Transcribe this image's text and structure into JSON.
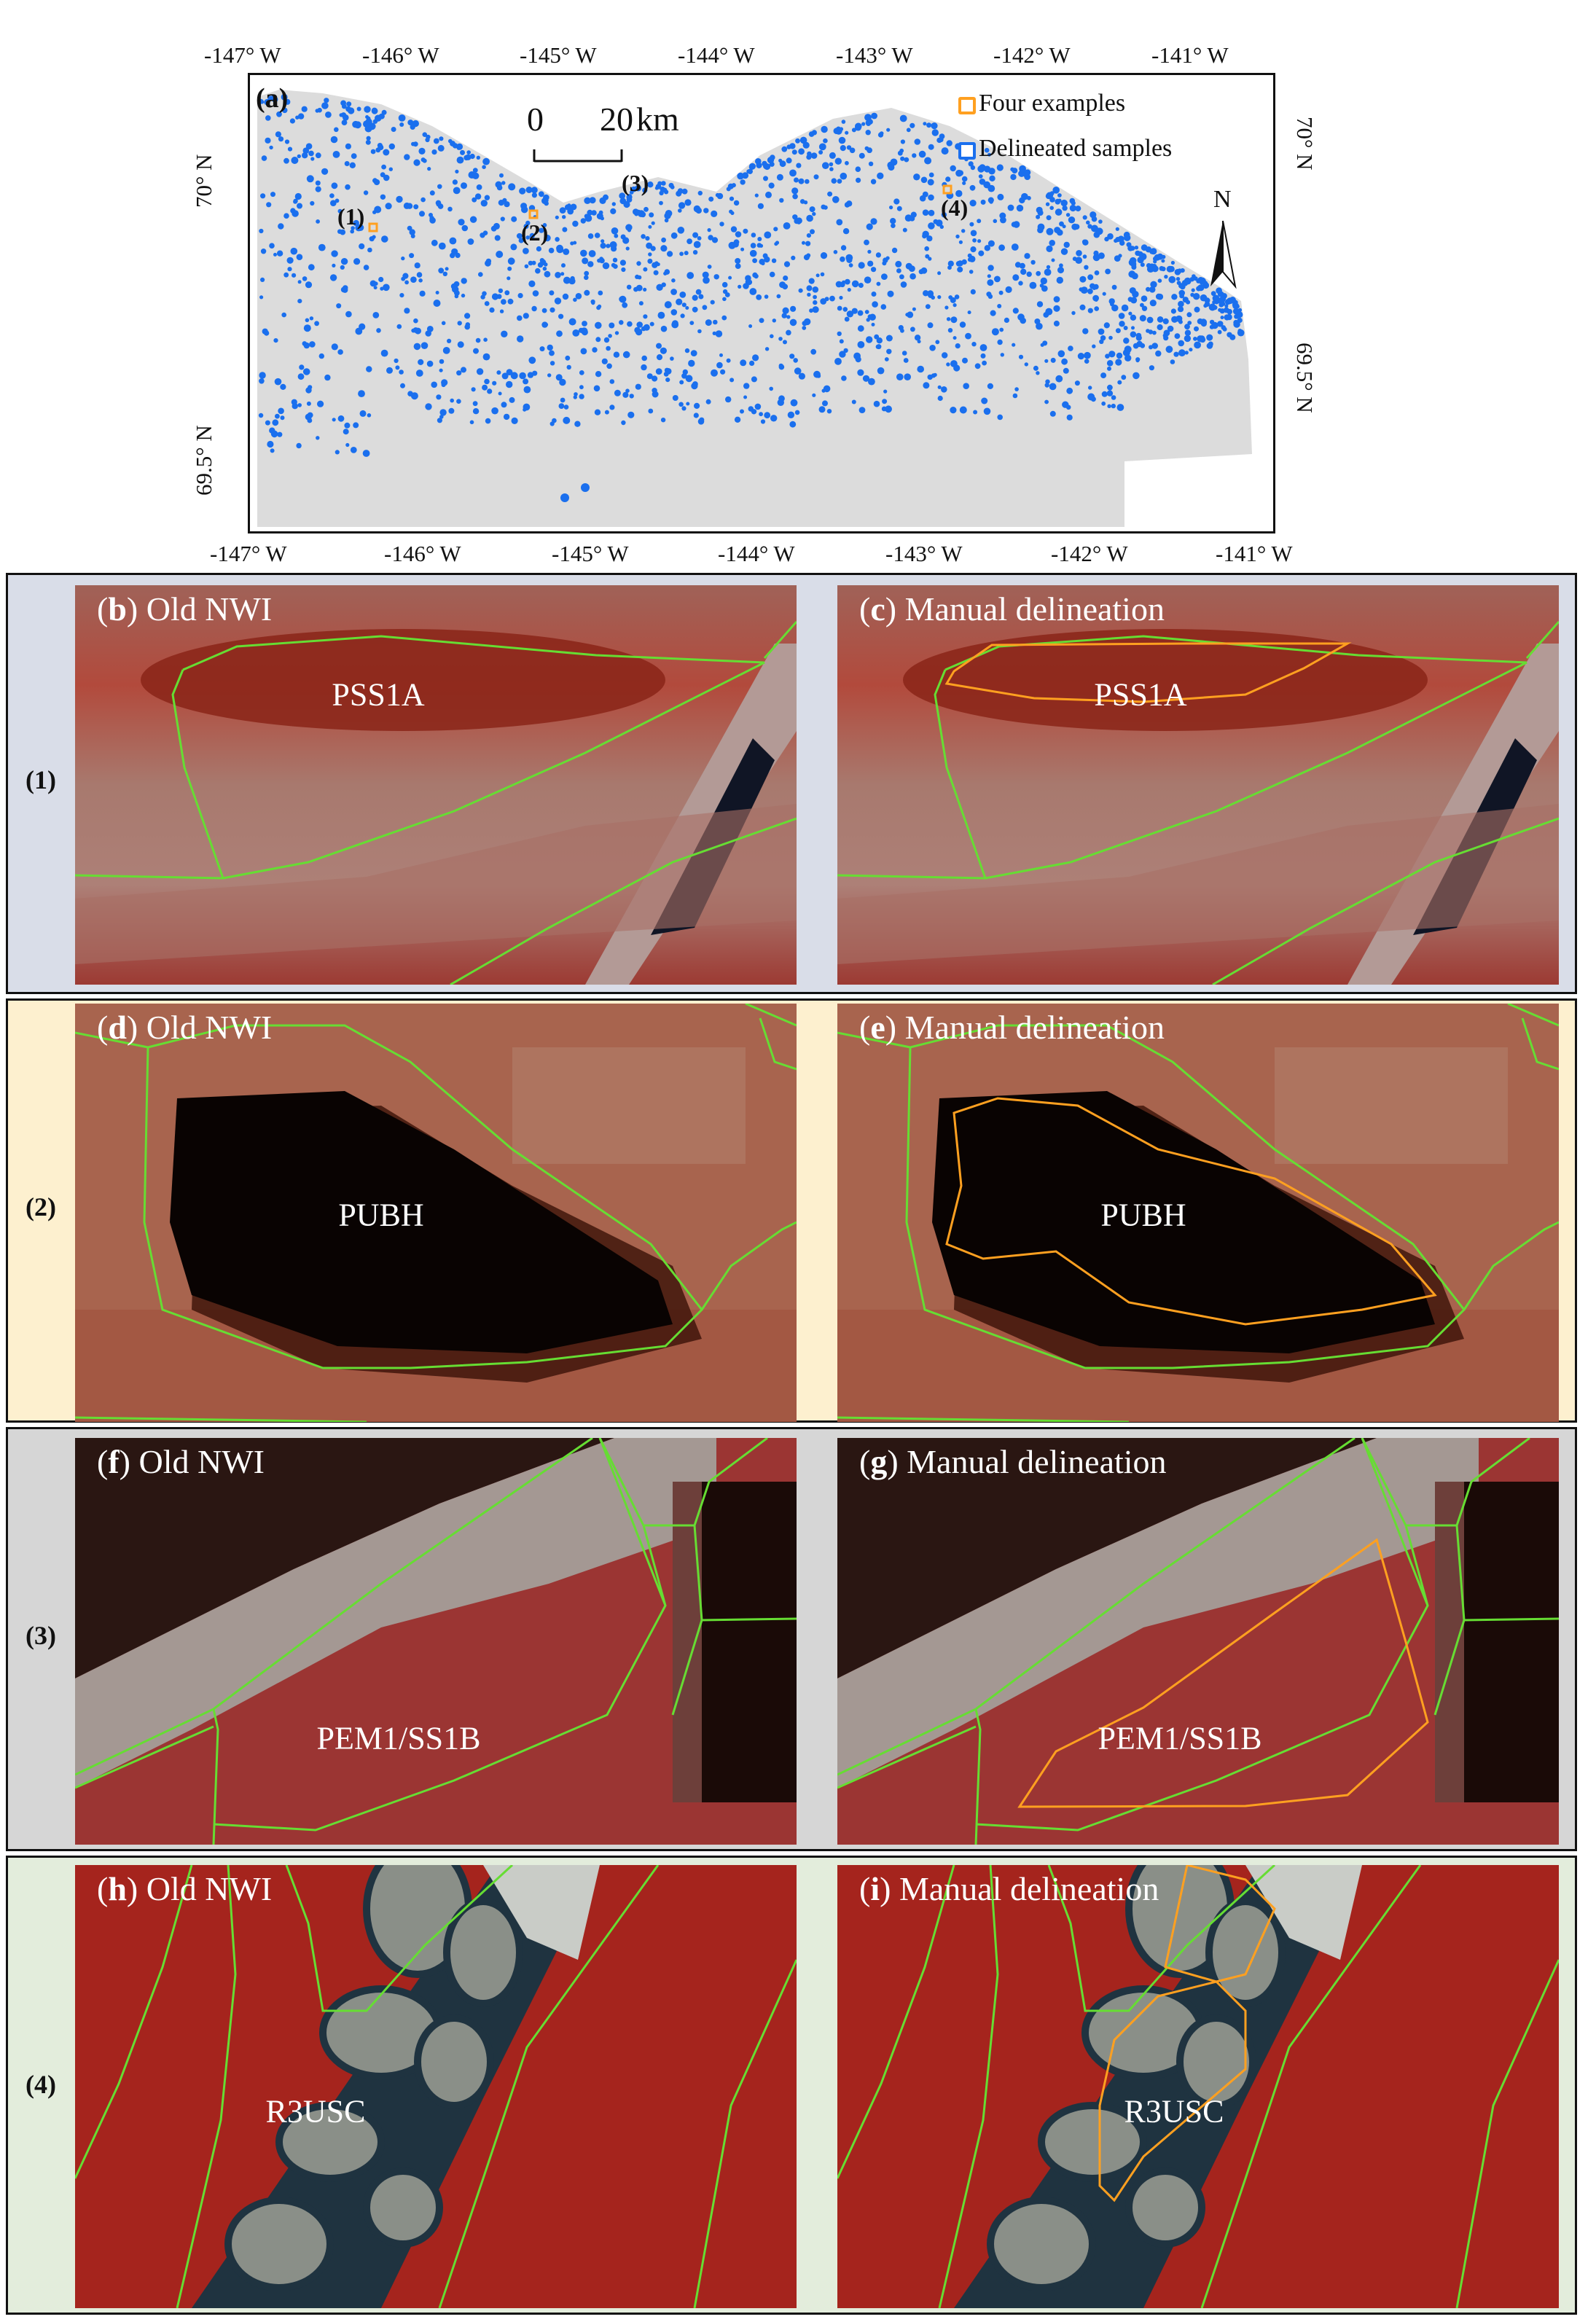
{
  "colors": {
    "nwi_line": "#66dd33",
    "manual_line": "#ffa020",
    "samples": "#1a6fee",
    "examples": "#ffa020",
    "land": "#dcdcdc"
  },
  "map": {
    "panel_label": "(a)",
    "top_ticks": [
      "-147° W",
      "-146° W",
      "-145° W",
      "-144° W",
      "-143° W",
      "-142° W",
      "-141° W"
    ],
    "bottom_ticks": [
      "-147° W",
      "-146° W",
      "-145° W",
      "-144° W",
      "-143° W",
      "-142° W",
      "-141° W"
    ],
    "left_ticks": [
      "70° N",
      "69.5° N"
    ],
    "right_ticks": [
      "70° N",
      "69.5° N"
    ],
    "scale_bar": {
      "zero": "0",
      "end": "20",
      "unit": "km"
    },
    "north_label": "N",
    "legend": {
      "examples": "Four examples",
      "samples": "Delineated samples"
    },
    "sites": [
      "(1)",
      "(2)",
      "(3)",
      "(4)"
    ]
  },
  "rows": [
    {
      "label": "(1)",
      "bg": "#d9dde8",
      "left": {
        "letter": "b",
        "title": "Old NWI",
        "code": "PSS1A"
      },
      "right": {
        "letter": "c",
        "title": "Manual delineation",
        "code": "PSS1A"
      }
    },
    {
      "label": "(2)",
      "bg": "#fdf0cf",
      "left": {
        "letter": "d",
        "title": "Old NWI",
        "code": "PUBH"
      },
      "right": {
        "letter": "e",
        "title": "Manual delineation",
        "code": "PUBH"
      }
    },
    {
      "label": "(3)",
      "bg": "#d6d6d6",
      "left": {
        "letter": "f",
        "title": "Old NWI",
        "code": "PEM1/SS1B"
      },
      "right": {
        "letter": "g",
        "title": "Manual delineation",
        "code": "PEM1/SS1B"
      }
    },
    {
      "label": "(4)",
      "bg": "#e3eddc",
      "left": {
        "letter": "h",
        "title": "Old NWI",
        "code": "R3USC"
      },
      "right": {
        "letter": "i",
        "title": "Manual delineation",
        "code": "R3USC"
      }
    }
  ]
}
